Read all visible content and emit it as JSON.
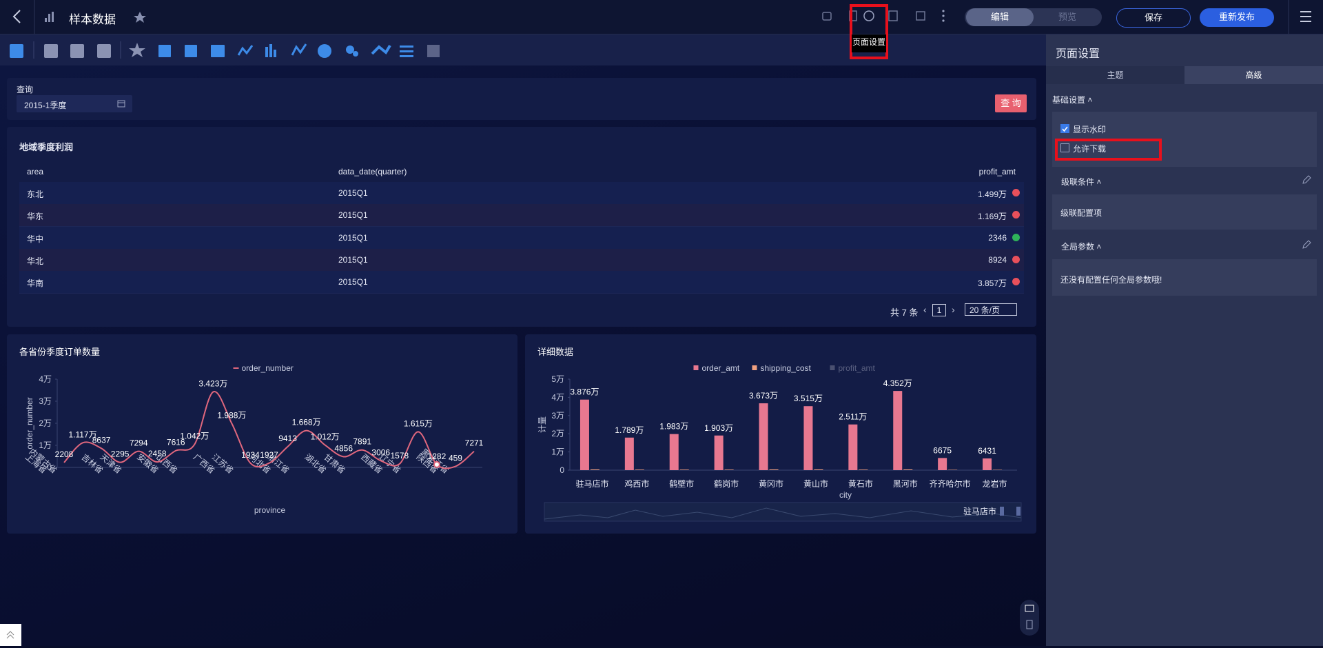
{
  "header": {
    "title": "样本数据",
    "tooltip": "页面设置",
    "tabs": [
      "编辑",
      "预览"
    ],
    "buttons": [
      "保存",
      "重新发布"
    ]
  },
  "query": {
    "label": "查询",
    "value": "2015-1季度",
    "button": "查 询"
  },
  "table": {
    "title": "地域季度利润",
    "columns": [
      "area",
      "data_date(quarter)",
      "profit_amt"
    ],
    "rows": [
      [
        "东北",
        "2015Q1",
        "1.499万"
      ],
      [
        "华东",
        "2015Q1",
        "1.169万"
      ],
      [
        "华中",
        "2015Q1",
        "2346"
      ],
      [
        "华北",
        "2015Q1",
        "8924"
      ],
      [
        "华南",
        "2015Q1",
        "3.857万"
      ]
    ],
    "row_colors": [
      "#e8505b",
      "#e8505b",
      "#2fb35a",
      "#e8505b",
      "#e8505b"
    ],
    "pagination": {
      "total": "共 7 条",
      "page": "1",
      "size": "20 条/页"
    }
  },
  "charts": [
    {
      "type": "line",
      "title": "各省份季度订单数量",
      "x_label": "province",
      "y_label": "order_number",
      "categories": [
        "上海省",
        "内蒙古省",
        null,
        "吉林省",
        "天津省",
        null,
        "安徽省",
        "山西省",
        null,
        "广西省",
        "江苏省",
        null,
        "河北省",
        "浙江省",
        null,
        "湖北省",
        "甘肃省",
        null,
        "西藏省",
        "辽宁省",
        null,
        "陕西省",
        "黑龙江省"
      ],
      "series": [
        {
          "name": "order_number",
          "color": "#e0677d",
          "values": [
            2208,
            11170,
            8637,
            2295,
            7294,
            2458,
            7616,
            10420,
            34230,
            19880,
            1934,
            1927,
            9413,
            16680,
            10120,
            4856,
            7891,
            3006,
            1578,
            16150,
            1282,
            459,
            7271
          ],
          "value_labels": [
            "2208",
            "1.117万",
            "8637",
            "2295",
            "7294",
            "2458",
            "7616",
            "1.042万",
            "3.423万",
            "1.988万",
            "1934",
            "1927",
            "9413",
            "1.668万",
            "1.012万",
            "4856",
            "7891",
            "3006",
            "1578",
            "1.615万",
            "1282",
            "459",
            "7271"
          ]
        }
      ],
      "ylim": [
        0,
        40000
      ],
      "yticks": [
        0,
        {
          "value": 10000,
          "label": "1万"
        },
        {
          "value": 20000,
          "label": "2万"
        },
        {
          "value": 30000,
          "label": "3万"
        },
        {
          "value": 40000,
          "label": "4万"
        }
      ]
    },
    {
      "type": "bar",
      "title": "详细数据",
      "x_label": "city",
      "y_label": "计量",
      "zoom_label": "驻马店市",
      "categories": [
        "驻马店市",
        "鸡西市",
        "鹤壁市",
        "鹤岗市",
        "黄冈市",
        "黄山市",
        "黄石市",
        "黑河市",
        "齐齐哈尔市",
        "龙岩市"
      ],
      "series": [
        {
          "name": "order_amt",
          "color": "#e87890",
          "values": [
            38760,
            17890,
            19830,
            19030,
            36730,
            35150,
            25110,
            43520,
            6675,
            6431
          ],
          "value_labels": [
            "3.876万",
            "1.789万",
            "1.983万",
            "1.903万",
            "3.673万",
            "3.515万",
            "2.511万",
            "4.352万",
            "6675",
            "6431"
          ]
        },
        {
          "name": "shipping_cost",
          "color": "#f0a080",
          "values": [
            400,
            300,
            300,
            300,
            400,
            400,
            300,
            400,
            200,
            200
          ]
        },
        {
          "name": "profit_amt",
          "color": "#4a5070",
          "hidden": true,
          "values": [
            null,
            null,
            null,
            null,
            null,
            null,
            null,
            null,
            null,
            null
          ]
        }
      ],
      "ylim": [
        0,
        50000
      ],
      "yticks": [
        0,
        {
          "value": 10000,
          "label": "1万"
        },
        {
          "value": 20000,
          "label": "2万"
        },
        {
          "value": 30000,
          "label": "3万"
        },
        {
          "value": 40000,
          "label": "4万"
        },
        {
          "value": 50000,
          "label": "5万"
        }
      ]
    }
  ],
  "panel": {
    "title": "页面设置",
    "tabs": [
      "主题",
      "高级"
    ],
    "basic": {
      "title": "基础设置",
      "options": [
        {
          "label": "显示水印",
          "checked": true
        },
        {
          "label": "允许下载",
          "checked": false
        }
      ]
    },
    "cascade": {
      "title": "级联条件",
      "text": "级联配置项"
    },
    "params": {
      "title": "全局参数",
      "text": "还没有配置任何全局参数哦!"
    }
  }
}
